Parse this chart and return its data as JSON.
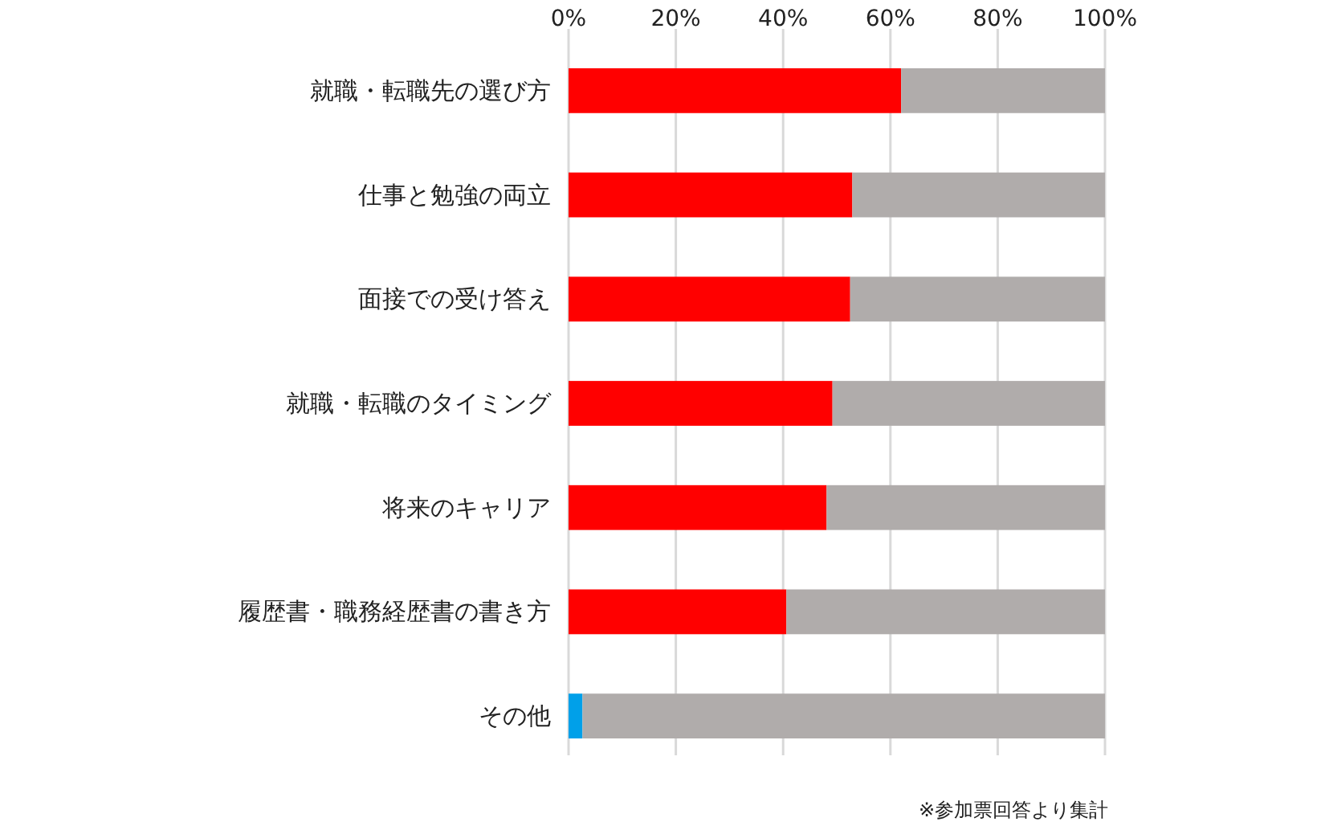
{
  "chart_data": {
    "type": "bar",
    "orientation": "horizontal",
    "stacked": true,
    "categories": [
      "就職・転職先の選び方",
      "仕事と勉強の両立",
      "面接での受け答え",
      "就職・転職のタイミング",
      "将来のキャリア",
      "履歴書・職務経歴書の書き方",
      "その他"
    ],
    "series": [
      {
        "colors": [
          "#ff0000",
          "#ff0000",
          "#ff0000",
          "#ff0000",
          "#ff0000",
          "#ff0000",
          "#00a0e9"
        ],
        "values": [
          62.0,
          52.9,
          52.5,
          49.2,
          48.1,
          40.6,
          2.6
        ]
      },
      {
        "color": "#b0acab",
        "values": [
          38.0,
          47.1,
          47.5,
          50.8,
          51.9,
          59.4,
          97.4
        ]
      }
    ],
    "xlim": [
      0,
      100
    ],
    "xticks": [
      {
        "value": 0,
        "label": "0%"
      },
      {
        "value": 20,
        "label": "20%"
      },
      {
        "value": 40,
        "label": "40%"
      },
      {
        "value": 60,
        "label": "60%"
      },
      {
        "value": 80,
        "label": "80%"
      },
      {
        "value": 100,
        "label": "100%"
      }
    ],
    "grid": "x",
    "annotations": [
      "※参加票回答より集計"
    ]
  }
}
